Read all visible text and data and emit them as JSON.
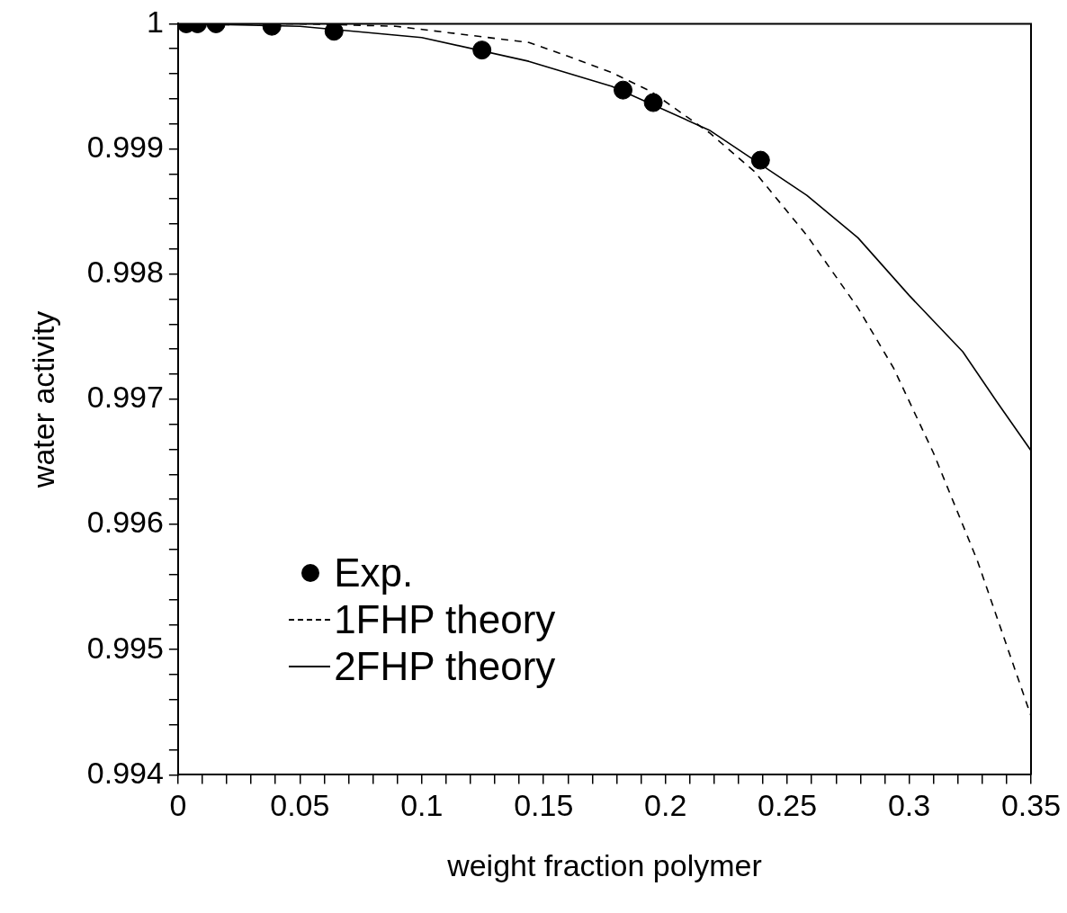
{
  "chart_data": {
    "type": "scatter",
    "xlabel": "weight fraction polymer",
    "ylabel": "water activity",
    "xlim": [
      0,
      0.35
    ],
    "ylim": [
      0.994,
      1
    ],
    "xticks": [
      0,
      {
        "value": 0.01,
        "label": null
      },
      {
        "value": 0.02,
        "label": null
      },
      {
        "value": 0.03,
        "label": null
      },
      {
        "value": 0.04,
        "label": null
      },
      0.05,
      {
        "value": 0.06,
        "label": null
      },
      {
        "value": 0.07,
        "label": null
      },
      {
        "value": 0.08,
        "label": null
      },
      {
        "value": 0.09,
        "label": null
      },
      0.1,
      {
        "value": 0.11,
        "label": null
      },
      {
        "value": 0.12,
        "label": null
      },
      {
        "value": 0.13,
        "label": null
      },
      {
        "value": 0.14,
        "label": null
      },
      0.15,
      {
        "value": 0.16,
        "label": null
      },
      {
        "value": 0.17,
        "label": null
      },
      {
        "value": 0.18,
        "label": null
      },
      {
        "value": 0.19,
        "label": null
      },
      0.2,
      {
        "value": 0.21,
        "label": null
      },
      {
        "value": 0.22,
        "label": null
      },
      {
        "value": 0.23,
        "label": null
      },
      {
        "value": 0.24,
        "label": null
      },
      0.25,
      {
        "value": 0.26,
        "label": null
      },
      {
        "value": 0.27,
        "label": null
      },
      {
        "value": 0.28,
        "label": null
      },
      {
        "value": 0.29,
        "label": null
      },
      0.3,
      {
        "value": 0.31,
        "label": null
      },
      {
        "value": 0.32,
        "label": null
      },
      {
        "value": 0.33,
        "label": null
      },
      {
        "value": 0.34,
        "label": null
      },
      0.35
    ],
    "yticks": [
      0.994,
      {
        "value": 0.9942,
        "label": null
      },
      {
        "value": 0.9944,
        "label": null
      },
      {
        "value": 0.9946,
        "label": null
      },
      {
        "value": 0.9948,
        "label": null
      },
      0.995,
      {
        "value": 0.9952,
        "label": null
      },
      {
        "value": 0.9954,
        "label": null
      },
      {
        "value": 0.9956,
        "label": null
      },
      {
        "value": 0.9958,
        "label": null
      },
      0.996,
      {
        "value": 0.9962,
        "label": null
      },
      {
        "value": 0.9964,
        "label": null
      },
      {
        "value": 0.9966,
        "label": null
      },
      {
        "value": 0.9968,
        "label": null
      },
      0.997,
      {
        "value": 0.9972,
        "label": null
      },
      {
        "value": 0.9974,
        "label": null
      },
      {
        "value": 0.9976,
        "label": null
      },
      {
        "value": 0.9978,
        "label": null
      },
      0.998,
      {
        "value": 0.9982,
        "label": null
      },
      {
        "value": 0.9984,
        "label": null
      },
      {
        "value": 0.9986,
        "label": null
      },
      {
        "value": 0.9988,
        "label": null
      },
      0.999,
      {
        "value": 0.9992,
        "label": null
      },
      {
        "value": 0.9994,
        "label": null
      },
      {
        "value": 0.9996,
        "label": null
      },
      {
        "value": 0.9998,
        "label": null
      },
      1
    ],
    "grid": false,
    "legend": "bottom left",
    "series": [
      {
        "name": "Exp.",
        "type": "scatter",
        "marker": "circle",
        "color": "#000000",
        "x": [
          0.0034,
          0.008,
          0.0156,
          0.0385,
          0.064,
          0.1247,
          0.1826,
          0.195,
          0.239
        ],
        "values": [
          1,
          1,
          1,
          0.99998,
          0.99994,
          0.99979,
          0.99947,
          0.99937,
          0.99891
        ]
      },
      {
        "name": "1FHP theory",
        "type": "line",
        "marker": "none",
        "line_style": "dashed",
        "color": "#000000",
        "x": [
          0,
          0.05,
          0.0895,
          0.144,
          0.16,
          0.178,
          0.194,
          0.218,
          0.2365,
          0.258,
          0.279,
          0.2936,
          0.31,
          0.328,
          0.35
        ],
        "values": [
          1,
          1,
          0.99998,
          0.99985,
          0.99974,
          0.99961,
          0.99946,
          0.99913,
          0.99882,
          0.99831,
          0.99773,
          0.99725,
          0.99657,
          0.99571,
          0.99447
        ]
      },
      {
        "name": "2FHP theory",
        "type": "line",
        "marker": "none",
        "line_style": "solid",
        "color": "#000000",
        "x": [
          0,
          0.05,
          0.1,
          0.1439,
          0.178,
          0.218,
          0.258,
          0.279,
          0.3,
          0.322,
          0.336,
          0.35
        ],
        "values": [
          1,
          0.99998,
          0.99989,
          0.9997,
          0.9995,
          0.99915,
          0.99863,
          0.99829,
          0.99783,
          0.99738,
          0.99698,
          0.99659
        ]
      }
    ]
  }
}
